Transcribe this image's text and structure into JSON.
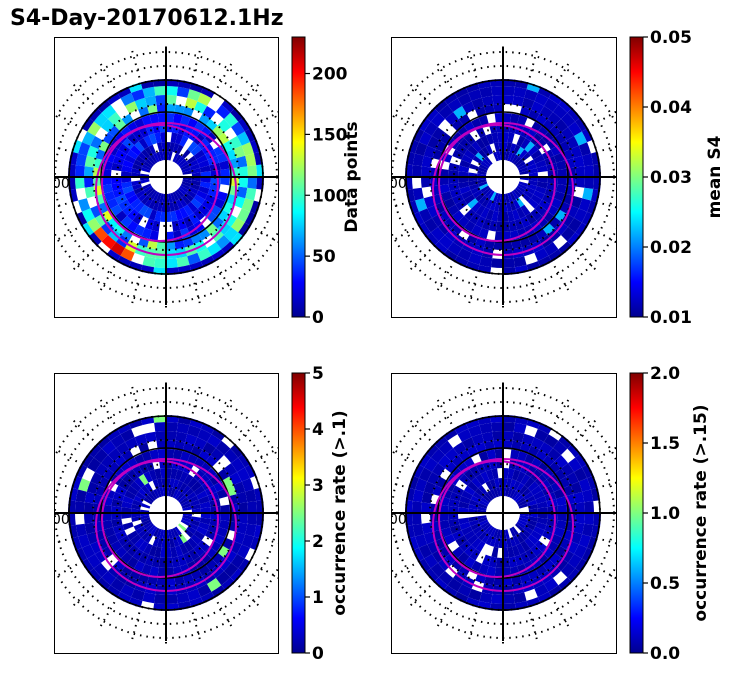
{
  "figure_title": "S4-Day-20170612.1Hz",
  "chart_data": [
    {
      "type": "heatmap",
      "projection": "polar",
      "panel": "top-left",
      "colorbar_label": "Data points",
      "colorbar_range": [
        0,
        230
      ],
      "colorbar_ticks": [
        "0",
        "50",
        "100",
        "150",
        "200"
      ],
      "colorbar_tick_values": [
        0,
        50,
        100,
        150,
        200
      ],
      "side_label": "00"
    },
    {
      "type": "heatmap",
      "projection": "polar",
      "panel": "top-right",
      "colorbar_label": "mean S4",
      "colorbar_range": [
        0.01,
        0.05
      ],
      "colorbar_ticks": [
        "0.01",
        "0.02",
        "0.03",
        "0.04",
        "0.05"
      ],
      "colorbar_tick_values": [
        0.01,
        0.02,
        0.03,
        0.04,
        0.05
      ],
      "side_label": "00"
    },
    {
      "type": "heatmap",
      "projection": "polar",
      "panel": "bottom-left",
      "colorbar_label": "occurrence rate (>.1)",
      "colorbar_range": [
        0,
        5
      ],
      "colorbar_ticks": [
        "0",
        "1",
        "2",
        "3",
        "4",
        "5"
      ],
      "colorbar_tick_values": [
        0,
        1,
        2,
        3,
        4,
        5
      ],
      "side_label": "00"
    },
    {
      "type": "heatmap",
      "projection": "polar",
      "panel": "bottom-right",
      "colorbar_label": "occurrence rate (>.15)",
      "colorbar_range": [
        0,
        2
      ],
      "colorbar_ticks": [
        "0.0",
        "0.5",
        "1.0",
        "1.5",
        "2.0"
      ],
      "colorbar_tick_values": [
        0,
        0.5,
        1.0,
        1.5,
        2.0
      ],
      "side_label": "00"
    }
  ],
  "colors": {
    "low": "#00008f",
    "ring_track": "#0a0a9a",
    "magenta": "#c000c0",
    "axis": "#000000"
  }
}
